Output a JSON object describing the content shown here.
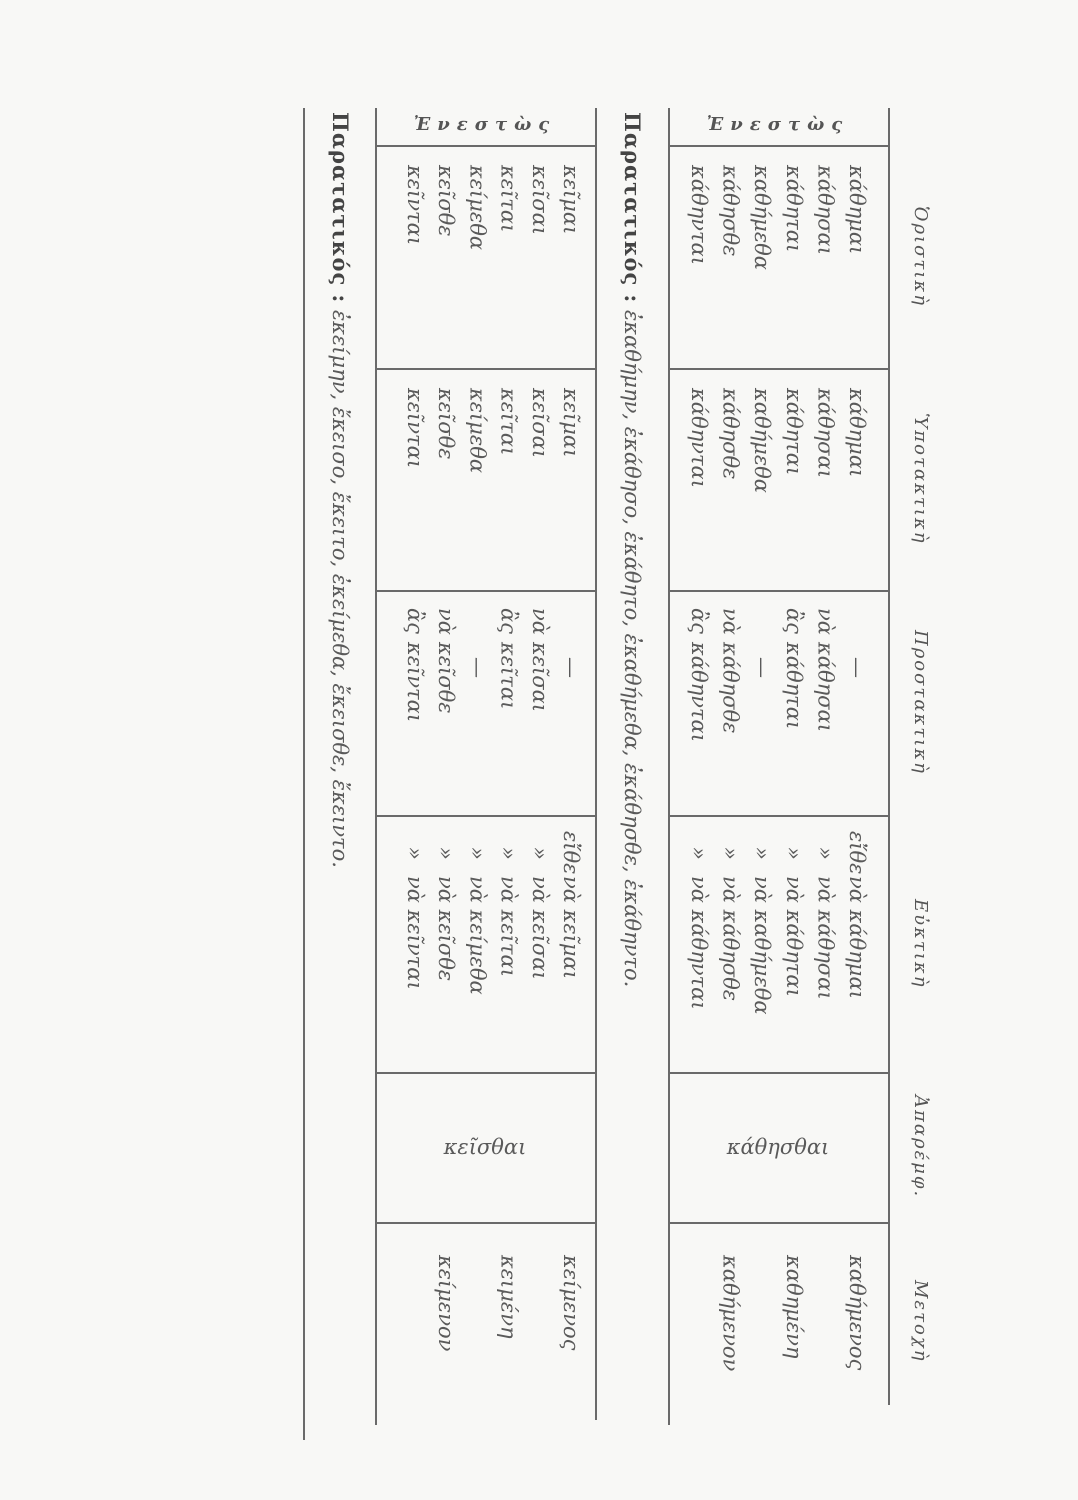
{
  "headers": [
    "Ὁριστικὴ",
    "Ὑποτακτικὴ",
    "Προστακτικὴ",
    "Εὐκτικὴ",
    "Ἀπαρέμφ.",
    "Μετοχὴ"
  ],
  "tables": [
    {
      "tense": "Ἐνεστὼς",
      "oristiki": [
        "κάθημαι",
        "κάθησαι",
        "κάθηται",
        "καθήμεθα",
        "κάθησθε",
        "κάθηνται"
      ],
      "ypotaktiki": [
        "κάθημαι",
        "κάθησαι",
        "κάθηται",
        "καθήμεθα",
        "κάθησθε",
        "κάθηνται"
      ],
      "prostaktiki": [
        [
          "",
          "—"
        ],
        [
          "νὰ",
          "κάθησαι"
        ],
        [
          "ἂς",
          "κάθηται"
        ],
        [
          "",
          "—"
        ],
        [
          "νὰ",
          "κάθησθε"
        ],
        [
          "ἂς",
          "κάθηνται"
        ]
      ],
      "euktiki": [
        [
          "εἴθε",
          "νὰ κάθημαι"
        ],
        [
          "»",
          "νὰ κάθησαι"
        ],
        [
          "»",
          "νὰ κάθηται"
        ],
        [
          "»",
          "νὰ καθήμεθα"
        ],
        [
          "»",
          "νὰ κάθησθε"
        ],
        [
          "»",
          "νὰ κάθηνται"
        ]
      ],
      "aparemfato": "κάθησθαι",
      "metochi": [
        "καθήμενος",
        "",
        "καθημένη",
        "",
        "καθήμενον",
        ""
      ],
      "caption_label": "Παρατατικός :",
      "caption_forms": "ἐκαθήμην, ἐκάθησο, ἐκάθητο, ἐκαθήμεθα, ἐκάθησθε, ἐκάθηντο."
    },
    {
      "tense": "Ἐνεστὼς",
      "oristiki": [
        "κεῖμαι",
        "κεῖσαι",
        "κεῖται",
        "κείμεθα",
        "κεῖσθε",
        "κεῖνται"
      ],
      "ypotaktiki": [
        "κεῖμαι",
        "κεῖσαι",
        "κεῖται",
        "κείμεθα",
        "κεῖσθε",
        "κεῖνται"
      ],
      "prostaktiki": [
        [
          "",
          "—"
        ],
        [
          "νὰ",
          "κεῖσαι"
        ],
        [
          "ἂς",
          "κεῖται"
        ],
        [
          "",
          "—"
        ],
        [
          "νὰ",
          "κεῖσθε"
        ],
        [
          "ἂς",
          "κεῖνται"
        ]
      ],
      "euktiki": [
        [
          "εἴθε",
          "νὰ κεῖμαι"
        ],
        [
          "»",
          "νὰ κεῖσαι"
        ],
        [
          "»",
          "νὰ κεῖται"
        ],
        [
          "»",
          "νὰ κείμεθα"
        ],
        [
          "»",
          "νὰ κεῖσθε"
        ],
        [
          "»",
          "νὰ κεῖνται"
        ]
      ],
      "aparemfato": "κεῖσθαι",
      "metochi": [
        "κείμενος",
        "",
        "κειμένη",
        "",
        "κείμενον",
        ""
      ],
      "caption_label": "Παρατατικός :",
      "caption_forms": "ἐκείμην, ἔκεισο, ἔκειτο, ἐκείμεθα, ἔκεισθε, ἔκειντο."
    }
  ]
}
